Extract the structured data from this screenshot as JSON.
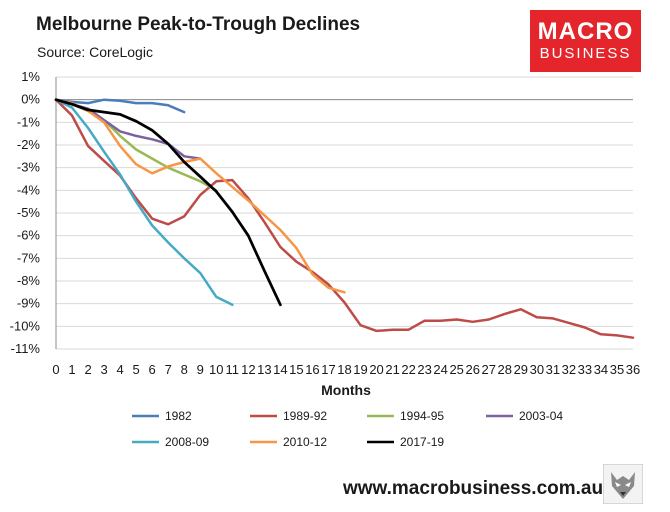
{
  "header": {
    "title": "Melbourne Peak-to-Trough Declines",
    "subtitle": "Source: CoreLogic"
  },
  "logo": {
    "line1": "MACRO",
    "line2": "BUSINESS",
    "color": "#e4252b"
  },
  "footer": {
    "website": "www.macrobusiness.com.au",
    "mascot_icon": "wolf-icon"
  },
  "chart_data": {
    "type": "line",
    "title": "Melbourne Peak-to-Trough Declines",
    "subtitle": "Source: CoreLogic",
    "xlabel": "Months",
    "ylabel": "",
    "xlim": [
      0,
      36
    ],
    "ylim": [
      -11,
      1
    ],
    "x_ticks": [
      0,
      1,
      2,
      3,
      4,
      5,
      6,
      7,
      8,
      9,
      10,
      11,
      12,
      13,
      14,
      15,
      16,
      17,
      18,
      19,
      20,
      21,
      22,
      23,
      24,
      25,
      26,
      27,
      28,
      29,
      30,
      31,
      32,
      33,
      34,
      35,
      36
    ],
    "y_ticks": [
      1,
      0,
      -1,
      -2,
      -3,
      -4,
      -5,
      -6,
      -7,
      -8,
      -9,
      -10,
      -11
    ],
    "y_tick_labels": [
      "1%",
      "0%",
      "-1%",
      "-2%",
      "-3%",
      "-4%",
      "-5%",
      "-6%",
      "-7%",
      "-8%",
      "-9%",
      "-10%",
      "-11%"
    ],
    "grid": true,
    "legend_position": "bottom",
    "series": [
      {
        "name": "1982",
        "color": "#4a7ebb",
        "points": [
          [
            0,
            0
          ],
          [
            1,
            -0.1
          ],
          [
            2,
            -0.15
          ],
          [
            3,
            0
          ],
          [
            4,
            -0.05
          ],
          [
            5,
            -0.15
          ],
          [
            6,
            -0.15
          ],
          [
            7,
            -0.25
          ],
          [
            8,
            -0.55
          ]
        ]
      },
      {
        "name": "1989-92",
        "color": "#be4b48",
        "points": [
          [
            0,
            0
          ],
          [
            1,
            -0.7
          ],
          [
            2,
            -2.05
          ],
          [
            3,
            -2.7
          ],
          [
            4,
            -3.35
          ],
          [
            5,
            -4.35
          ],
          [
            6,
            -5.25
          ],
          [
            7,
            -5.5
          ],
          [
            8,
            -5.15
          ],
          [
            9,
            -4.2
          ],
          [
            10,
            -3.6
          ],
          [
            11,
            -3.55
          ],
          [
            12,
            -4.35
          ],
          [
            13,
            -5.4
          ],
          [
            14,
            -6.5
          ],
          [
            15,
            -7.15
          ],
          [
            16,
            -7.6
          ],
          [
            17,
            -8.15
          ],
          [
            18,
            -8.95
          ],
          [
            19,
            -9.95
          ],
          [
            20,
            -10.2
          ],
          [
            21,
            -10.15
          ],
          [
            22,
            -10.15
          ],
          [
            23,
            -9.75
          ],
          [
            24,
            -9.75
          ],
          [
            25,
            -9.7
          ],
          [
            26,
            -9.8
          ],
          [
            27,
            -9.7
          ],
          [
            28,
            -9.45
          ],
          [
            29,
            -9.25
          ],
          [
            30,
            -9.6
          ],
          [
            31,
            -9.65
          ],
          [
            32,
            -9.85
          ],
          [
            33,
            -10.05
          ],
          [
            34,
            -10.35
          ],
          [
            35,
            -10.4
          ],
          [
            36,
            -10.5
          ]
        ]
      },
      {
        "name": "1994-95",
        "color": "#98b954",
        "points": [
          [
            0,
            0
          ],
          [
            1,
            -0.2
          ],
          [
            2,
            -0.5
          ],
          [
            3,
            -0.9
          ],
          [
            4,
            -1.6
          ],
          [
            5,
            -2.2
          ],
          [
            6,
            -2.6
          ],
          [
            7,
            -3.0
          ],
          [
            8,
            -3.3
          ],
          [
            9,
            -3.6
          ],
          [
            10,
            -4.0
          ]
        ]
      },
      {
        "name": "2003-04",
        "color": "#7d60a0",
        "points": [
          [
            0,
            0
          ],
          [
            1,
            -0.2
          ],
          [
            2,
            -0.4
          ],
          [
            3,
            -0.9
          ],
          [
            4,
            -1.4
          ],
          [
            5,
            -1.6
          ],
          [
            6,
            -1.75
          ],
          [
            7,
            -1.95
          ],
          [
            8,
            -2.5
          ],
          [
            9,
            -2.6
          ]
        ]
      },
      {
        "name": "2008-09",
        "color": "#46aac5",
        "points": [
          [
            0,
            0
          ],
          [
            1,
            -0.35
          ],
          [
            2,
            -1.25
          ],
          [
            3,
            -2.3
          ],
          [
            4,
            -3.3
          ],
          [
            5,
            -4.5
          ],
          [
            6,
            -5.55
          ],
          [
            7,
            -6.3
          ],
          [
            8,
            -7.0
          ],
          [
            9,
            -7.65
          ],
          [
            10,
            -8.7
          ],
          [
            11,
            -9.05
          ]
        ]
      },
      {
        "name": "2010-12",
        "color": "#f79646",
        "points": [
          [
            0,
            0
          ],
          [
            1,
            -0.15
          ],
          [
            2,
            -0.5
          ],
          [
            3,
            -1.0
          ],
          [
            4,
            -2.05
          ],
          [
            5,
            -2.85
          ],
          [
            6,
            -3.25
          ],
          [
            7,
            -2.95
          ],
          [
            8,
            -2.75
          ],
          [
            9,
            -2.6
          ],
          [
            10,
            -3.25
          ],
          [
            11,
            -3.85
          ],
          [
            12,
            -4.45
          ],
          [
            13,
            -5.1
          ],
          [
            14,
            -5.75
          ],
          [
            15,
            -6.55
          ],
          [
            16,
            -7.7
          ],
          [
            17,
            -8.3
          ],
          [
            18,
            -8.5
          ]
        ]
      },
      {
        "name": "2017-19",
        "color": "#000000",
        "points": [
          [
            0,
            0
          ],
          [
            1,
            -0.2
          ],
          [
            2,
            -0.45
          ],
          [
            3,
            -0.55
          ],
          [
            4,
            -0.65
          ],
          [
            5,
            -0.95
          ],
          [
            6,
            -1.35
          ],
          [
            7,
            -1.95
          ],
          [
            8,
            -2.75
          ],
          [
            9,
            -3.4
          ],
          [
            10,
            -4.05
          ],
          [
            11,
            -4.95
          ],
          [
            12,
            -6.0
          ],
          [
            13,
            -7.55
          ],
          [
            14,
            -9.05
          ]
        ]
      }
    ]
  }
}
